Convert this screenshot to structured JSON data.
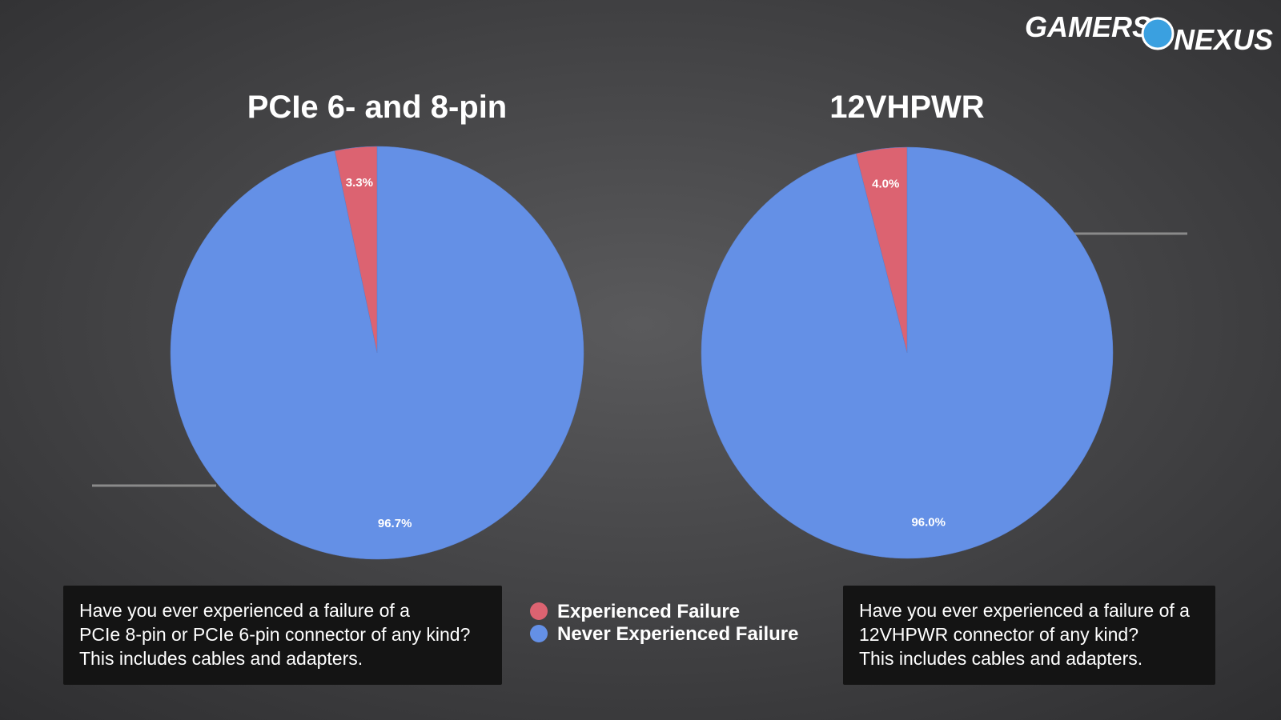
{
  "logo": {
    "left": "GAMERS",
    "right": "NEXUS"
  },
  "legend": {
    "categories": [
      "Experienced Failure",
      "Never Experienced Failure"
    ],
    "colors": [
      "#dc6371",
      "#6490e6"
    ]
  },
  "chart_data": [
    {
      "type": "pie",
      "title": "PCIe 6- and 8-pin",
      "values": [
        3.3,
        96.7
      ],
      "value_labels": [
        "3.3%",
        "96.7%"
      ],
      "caption": [
        "Have you ever experienced a failure of a",
        "PCIe 8-pin or PCIe 6-pin connector of any kind?",
        "This includes cables and adapters."
      ]
    },
    {
      "type": "pie",
      "title": "12VHPWR",
      "values": [
        4.0,
        96.0
      ],
      "value_labels": [
        "4.0%",
        "96.0%"
      ],
      "caption": [
        "Have you ever experienced a failure of a",
        "12VHPWR connector of any kind?",
        "This includes cables and adapters."
      ]
    }
  ]
}
